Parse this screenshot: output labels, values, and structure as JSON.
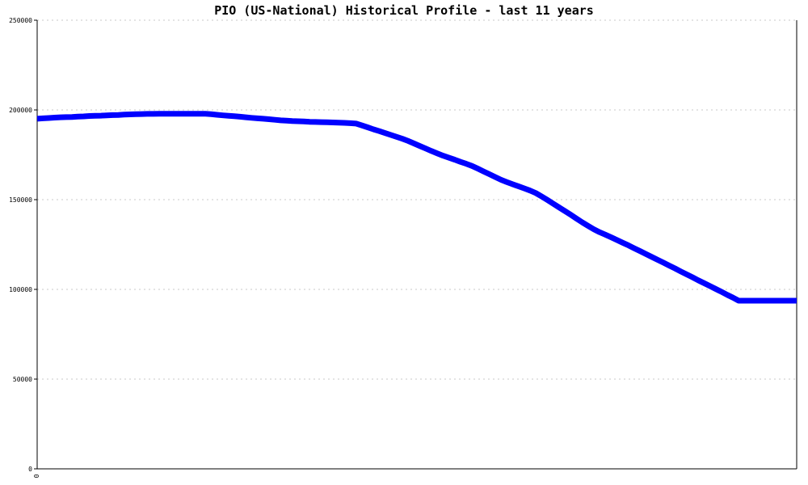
{
  "chart_data": {
    "type": "line",
    "title": "PIO (US-National) Historical Profile - last 11 years",
    "xlabel": "",
    "ylabel": "",
    "x_tick_labels": [
      "0"
    ],
    "ylim": [
      0,
      250000
    ],
    "y_ticks": [
      0,
      50000,
      100000,
      150000,
      200000,
      250000
    ],
    "y_tick_labels": [
      "0",
      "50000",
      "100000",
      "150000",
      "200000",
      "250000"
    ],
    "grid": "horizontal dashed",
    "series": [
      {
        "color": "#0000ff",
        "x": [
          0,
          1,
          2,
          3,
          4,
          5,
          6,
          7,
          8,
          9,
          10,
          11,
          12,
          13,
          14,
          15,
          16,
          17,
          18,
          19,
          20,
          21,
          22,
          23,
          24,
          25,
          26,
          27,
          28,
          29,
          30,
          31,
          32,
          33,
          34,
          35,
          36,
          37,
          38,
          39,
          40,
          41,
          42,
          43,
          44,
          45,
          46,
          47,
          48,
          49,
          50,
          51,
          52,
          53,
          54,
          55,
          56,
          57,
          58,
          59,
          60,
          61,
          62,
          63,
          64,
          65,
          66,
          67,
          68,
          69,
          70,
          71,
          72,
          73,
          74,
          75,
          76,
          77,
          78,
          79,
          80,
          81,
          82,
          83,
          84,
          85,
          86,
          87,
          88,
          89,
          90,
          91,
          92,
          93,
          94,
          95,
          96,
          97,
          98,
          99,
          100,
          101,
          102,
          103,
          104,
          105,
          106,
          107,
          108,
          109,
          110,
          111,
          112,
          113,
          114,
          115,
          116,
          117,
          118,
          119,
          120,
          121,
          122,
          123,
          124,
          125,
          126,
          127,
          128,
          129,
          130,
          131
        ],
        "values": [
          195100,
          195300,
          195500,
          195700,
          195900,
          196000,
          196100,
          196300,
          196400,
          196600,
          196700,
          196800,
          197000,
          197100,
          197200,
          197400,
          197500,
          197600,
          197700,
          197800,
          197800,
          197900,
          197900,
          197900,
          197900,
          197900,
          197900,
          197900,
          197900,
          197900,
          197600,
          197300,
          197000,
          196700,
          196500,
          196200,
          195900,
          195600,
          195300,
          195100,
          194800,
          194500,
          194200,
          194000,
          193800,
          193700,
          193600,
          193400,
          193300,
          193200,
          193100,
          193000,
          192900,
          192800,
          192600,
          192400,
          191400,
          190300,
          189200,
          188200,
          187100,
          186100,
          185000,
          183900,
          182700,
          181300,
          179900,
          178500,
          177100,
          175800,
          174500,
          173400,
          172300,
          171100,
          170000,
          168800,
          167300,
          165700,
          164200,
          162600,
          161100,
          159800,
          158600,
          157500,
          156300,
          155100,
          153700,
          151800,
          149800,
          147800,
          145700,
          143700,
          141600,
          139500,
          137400,
          135400,
          133500,
          131900,
          130500,
          129000,
          127500,
          126000,
          124500,
          122900,
          121300,
          119700,
          118100,
          116500,
          114900,
          113300,
          111700,
          110000,
          108400,
          106800,
          105100,
          103500,
          101900,
          100300,
          98700,
          97000,
          95400,
          93700,
          93700,
          93700,
          93700,
          93700,
          93700,
          93700,
          93700,
          93700,
          93700,
          93700
        ]
      }
    ]
  }
}
